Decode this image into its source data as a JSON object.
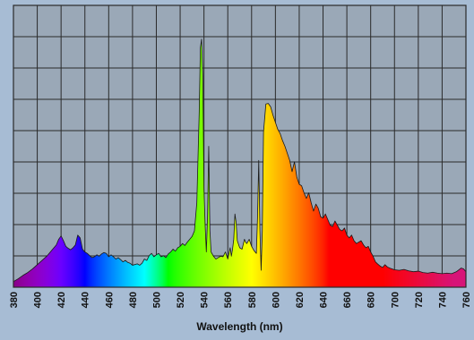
{
  "colors": {
    "background": "#a7bcd4",
    "plot_background": "#9aa8b7",
    "grid": "#2a2a2a",
    "outline": "#1a1a1a"
  },
  "chart_data": {
    "type": "area",
    "title": "",
    "xlabel": "Wavelength (nm)",
    "ylabel": "",
    "xlim": [
      380,
      760
    ],
    "ylim": [
      0,
      100
    ],
    "grid": true,
    "fill": "visible-spectrum gradient by wavelength",
    "x_ticks": [
      380,
      400,
      420,
      440,
      460,
      480,
      500,
      520,
      540,
      560,
      580,
      600,
      620,
      640,
      660,
      680,
      700,
      720,
      740,
      760
    ],
    "y_tick_count": 9,
    "series": [
      {
        "points": [
          [
            380,
            2.0
          ],
          [
            384,
            3.0
          ],
          [
            388,
            4.2
          ],
          [
            392,
            5.2
          ],
          [
            396,
            6.5
          ],
          [
            400,
            8.0
          ],
          [
            404,
            9.5
          ],
          [
            408,
            11.0
          ],
          [
            412,
            13.0
          ],
          [
            416,
            15.0
          ],
          [
            418,
            17.0
          ],
          [
            420,
            18.2
          ],
          [
            422,
            16.5
          ],
          [
            424,
            14.5
          ],
          [
            426,
            13.8
          ],
          [
            428,
            13.3
          ],
          [
            430,
            14.0
          ],
          [
            432,
            15.0
          ],
          [
            434,
            18.5
          ],
          [
            436,
            17.5
          ],
          [
            438,
            13.5
          ],
          [
            440,
            12.5
          ],
          [
            442,
            12.0
          ],
          [
            444,
            11.2
          ],
          [
            446,
            10.5
          ],
          [
            448,
            10.8
          ],
          [
            450,
            11.5
          ],
          [
            452,
            11.0
          ],
          [
            454,
            11.8
          ],
          [
            456,
            12.3
          ],
          [
            458,
            12.0
          ],
          [
            460,
            10.8
          ],
          [
            462,
            11.5
          ],
          [
            464,
            10.8
          ],
          [
            466,
            10.0
          ],
          [
            468,
            10.5
          ],
          [
            470,
            9.8
          ],
          [
            472,
            9.0
          ],
          [
            474,
            9.5
          ],
          [
            476,
            8.8
          ],
          [
            478,
            8.5
          ],
          [
            480,
            7.8
          ],
          [
            484,
            8.3
          ],
          [
            486,
            7.8
          ],
          [
            488,
            8.5
          ],
          [
            490,
            10.0
          ],
          [
            492,
            9.5
          ],
          [
            494,
            11.2
          ],
          [
            496,
            12.0
          ],
          [
            498,
            10.8
          ],
          [
            500,
            11.5
          ],
          [
            502,
            12.0
          ],
          [
            504,
            10.8
          ],
          [
            506,
            11.2
          ],
          [
            508,
            10.5
          ],
          [
            510,
            11.8
          ],
          [
            512,
            12.5
          ],
          [
            514,
            13.5
          ],
          [
            516,
            12.8
          ],
          [
            518,
            14.0
          ],
          [
            520,
            14.5
          ],
          [
            522,
            15.5
          ],
          [
            524,
            14.8
          ],
          [
            526,
            16.0
          ],
          [
            528,
            17.0
          ],
          [
            530,
            18.0
          ],
          [
            532,
            20.0
          ],
          [
            534,
            30.0
          ],
          [
            536,
            62.0
          ],
          [
            537,
            85.0
          ],
          [
            538,
            88.0
          ],
          [
            539,
            75.0
          ],
          [
            540,
            35.0
          ],
          [
            541,
            22.0
          ],
          [
            542,
            12.5
          ],
          [
            543,
            25.0
          ],
          [
            544,
            50.0
          ],
          [
            545,
            20.0
          ],
          [
            546,
            12.5
          ],
          [
            548,
            11.0
          ],
          [
            550,
            10.0
          ],
          [
            552,
            10.5
          ],
          [
            554,
            11.0
          ],
          [
            556,
            10.8
          ],
          [
            558,
            12.5
          ],
          [
            560,
            10.0
          ],
          [
            562,
            14.0
          ],
          [
            563,
            11.0
          ],
          [
            564,
            13.5
          ],
          [
            565,
            17.0
          ],
          [
            566,
            26.0
          ],
          [
            567,
            23.0
          ],
          [
            568,
            16.5
          ],
          [
            570,
            14.0
          ],
          [
            572,
            13.5
          ],
          [
            574,
            17.0
          ],
          [
            575,
            16.0
          ],
          [
            576,
            15.5
          ],
          [
            578,
            17.0
          ],
          [
            580,
            14.5
          ],
          [
            582,
            13.0
          ],
          [
            584,
            12.0
          ],
          [
            585,
            25.0
          ],
          [
            586,
            45.0
          ],
          [
            587,
            20.0
          ],
          [
            588,
            6.0
          ],
          [
            589,
            20.0
          ],
          [
            590,
            55.0
          ],
          [
            592,
            65.0
          ],
          [
            594,
            65.2
          ],
          [
            596,
            64.0
          ],
          [
            598,
            61.0
          ],
          [
            600,
            58.5
          ],
          [
            602,
            56.0
          ],
          [
            604,
            54.5
          ],
          [
            606,
            52.0
          ],
          [
            608,
            50.0
          ],
          [
            610,
            47.5
          ],
          [
            612,
            45.0
          ],
          [
            614,
            41.0
          ],
          [
            616,
            44.5
          ],
          [
            618,
            39.0
          ],
          [
            620,
            36.5
          ],
          [
            622,
            36.0
          ],
          [
            624,
            33.5
          ],
          [
            626,
            31.5
          ],
          [
            628,
            33.5
          ],
          [
            630,
            30.0
          ],
          [
            632,
            27.0
          ],
          [
            634,
            29.5
          ],
          [
            636,
            28.0
          ],
          [
            638,
            25.0
          ],
          [
            640,
            24.5
          ],
          [
            642,
            26.0
          ],
          [
            644,
            24.0
          ],
          [
            646,
            22.0
          ],
          [
            648,
            21.5
          ],
          [
            650,
            23.5
          ],
          [
            652,
            22.0
          ],
          [
            654,
            20.5
          ],
          [
            656,
            20.0
          ],
          [
            658,
            21.0
          ],
          [
            660,
            18.5
          ],
          [
            662,
            17.5
          ],
          [
            664,
            18.5
          ],
          [
            666,
            16.5
          ],
          [
            668,
            15.5
          ],
          [
            670,
            16.0
          ],
          [
            672,
            16.5
          ],
          [
            674,
            15.0
          ],
          [
            676,
            14.0
          ],
          [
            678,
            14.5
          ],
          [
            680,
            12.5
          ],
          [
            682,
            11.0
          ],
          [
            684,
            9.0
          ],
          [
            686,
            8.2
          ],
          [
            688,
            7.5
          ],
          [
            690,
            7.0
          ],
          [
            692,
            8.0
          ],
          [
            694,
            7.2
          ],
          [
            696,
            6.8
          ],
          [
            700,
            6.2
          ],
          [
            704,
            6.0
          ],
          [
            708,
            6.3
          ],
          [
            712,
            5.8
          ],
          [
            716,
            5.5
          ],
          [
            720,
            5.7
          ],
          [
            724,
            5.2
          ],
          [
            728,
            5.0
          ],
          [
            732,
            5.3
          ],
          [
            736,
            5.0
          ],
          [
            740,
            4.8
          ],
          [
            744,
            5.0
          ],
          [
            748,
            4.8
          ],
          [
            752,
            5.5
          ],
          [
            756,
            6.8
          ],
          [
            758,
            6.5
          ],
          [
            760,
            5.5
          ]
        ]
      }
    ]
  }
}
